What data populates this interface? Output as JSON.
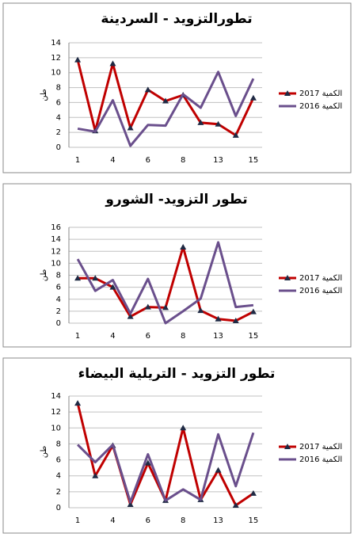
{
  "chart_data": [
    {
      "type": "line",
      "title": "تطورالتزويد - السردينة",
      "y_label": "طن",
      "categories": [
        "1",
        null,
        "4",
        null,
        "6",
        null,
        "8",
        null,
        "13",
        null,
        "15"
      ],
      "ylim": [
        0,
        14
      ],
      "yticks": [
        0,
        2,
        4,
        6,
        8,
        10,
        12,
        14
      ],
      "grid": true,
      "legend": "right",
      "series": [
        {
          "name": "2017 الكمية",
          "color": "#c00000",
          "values": [
            11.7,
            2.2,
            11.2,
            2.6,
            7.7,
            6.2,
            7.0,
            3.3,
            3.1,
            1.6,
            6.6
          ]
        },
        {
          "name": "2016 الكمية",
          "color": "#6a4f8c",
          "values": [
            2.5,
            2.1,
            6.3,
            0.2,
            3.0,
            2.9,
            7.1,
            5.3,
            10.1,
            4.2,
            9.2
          ]
        }
      ]
    },
    {
      "type": "line",
      "title": "تطور التزويد- الشورو",
      "y_label": "طن",
      "categories": [
        "1",
        null,
        "4",
        null,
        "6",
        null,
        "8",
        null,
        "13",
        null,
        "15"
      ],
      "ylim": [
        0,
        16
      ],
      "yticks": [
        0,
        2,
        4,
        6,
        8,
        10,
        12,
        14,
        16
      ],
      "grid": true,
      "legend": "right",
      "series": [
        {
          "name": "2017 الكمية",
          "color": "#c00000",
          "values": [
            7.5,
            7.5,
            6.0,
            1.1,
            2.7,
            2.6,
            12.7,
            2.1,
            0.7,
            0.4,
            1.9
          ]
        },
        {
          "name": "2016 الكمية",
          "color": "#6a4f8c",
          "values": [
            10.7,
            5.4,
            7.2,
            1.6,
            7.4,
            0.0,
            2.0,
            4.1,
            13.5,
            2.7,
            3.0
          ]
        }
      ]
    },
    {
      "type": "line",
      "title": "تطور التزويد - التريلية البيضاء",
      "y_label": "طن",
      "categories": [
        "1",
        null,
        "4",
        null,
        "6",
        null,
        "8",
        null,
        "13",
        null,
        "15"
      ],
      "ylim": [
        0,
        14
      ],
      "yticks": [
        0,
        2,
        4,
        6,
        8,
        10,
        12,
        14
      ],
      "grid": true,
      "legend": "right",
      "series": [
        {
          "name": "2017 الكمية",
          "color": "#c00000",
          "values": [
            13.1,
            4.0,
            7.8,
            0.4,
            5.6,
            0.9,
            10.0,
            1.0,
            4.7,
            0.3,
            1.8
          ]
        },
        {
          "name": "2016 الكمية",
          "color": "#6a4f8c",
          "values": [
            7.9,
            5.7,
            7.9,
            0.7,
            6.7,
            0.9,
            2.3,
            1.0,
            9.2,
            2.7,
            9.4
          ]
        }
      ]
    }
  ]
}
